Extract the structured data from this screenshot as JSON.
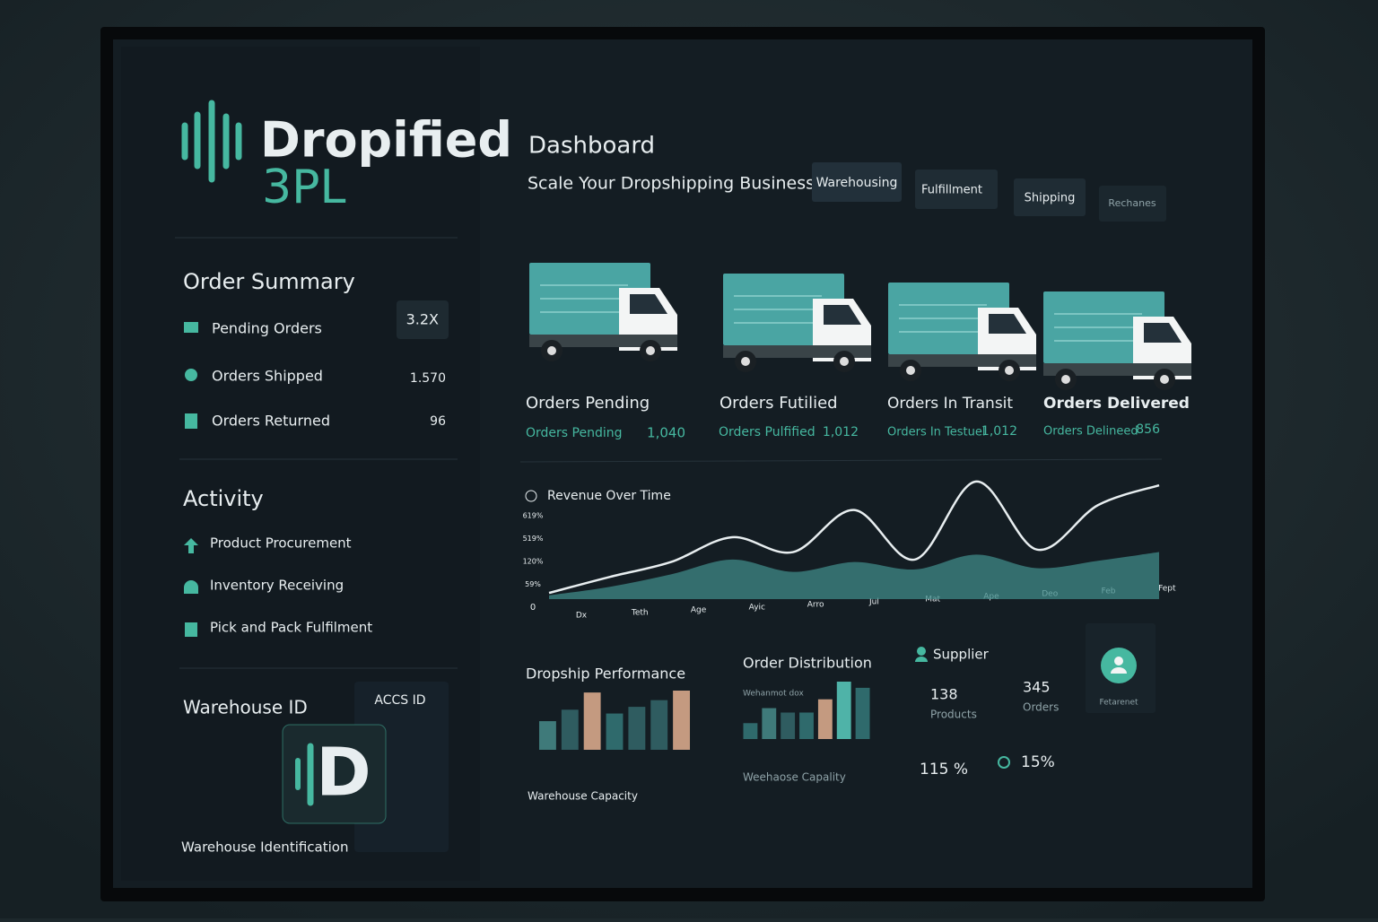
{
  "brand": {
    "name": "Dropified",
    "sub": "3PL"
  },
  "sidebar": {
    "order_summary": {
      "title": "Order Summary",
      "items": [
        {
          "label": "Pending Orders",
          "value": "3.2X"
        },
        {
          "label": "Orders Shipped",
          "value": "1.570"
        },
        {
          "label": "Orders Returned",
          "value": "96"
        }
      ]
    },
    "activity": {
      "title": "Activity",
      "items": [
        "Product Procurement",
        "Inventory Receiving",
        "Pick and Pack Fulfilment"
      ]
    },
    "warehouse": {
      "title": "Warehouse ID",
      "code": "ACCS ID",
      "badge": "D",
      "caption": "Warehouse Identification"
    }
  },
  "header": {
    "title": "Dashboard",
    "subtitle": "Scale Your Dropshipping Business",
    "tabs": [
      "Warehousing",
      "Fulfillment",
      "Shipping",
      "Rechanes"
    ]
  },
  "cards": [
    {
      "title": "Orders Pending",
      "label": "Orders Pending",
      "value": "1,040"
    },
    {
      "title": "Orders Futilied",
      "label": "Orders Pulfified",
      "value": "1,012"
    },
    {
      "title": "Orders In Transit",
      "label": "Orders In Testuel",
      "value": "1,012"
    },
    {
      "title": "Orders Delivered",
      "label": "Orders Delineed",
      "value": "856"
    }
  ],
  "chart_data": [
    {
      "type": "line",
      "title": "Revenue Over Time",
      "categories": [
        "Dx",
        "Teth",
        "Age",
        "Ayic",
        "Arro",
        "Jul",
        "Mat",
        "Ape",
        "Deo",
        "Feb",
        "Fept"
      ],
      "y_axis_labels": [
        "0",
        "59%",
        "120%",
        "519%",
        "619%"
      ],
      "ylim": [
        0,
        100
      ],
      "series": [
        {
          "color": "#e8eef0",
          "values": [
            5,
            18,
            30,
            50,
            38,
            72,
            32,
            95,
            40,
            76,
            92
          ]
        },
        {
          "color": "#3f8a88",
          "values": [
            3,
            10,
            20,
            32,
            22,
            30,
            24,
            36,
            25,
            31,
            38
          ]
        }
      ]
    },
    {
      "type": "bar",
      "title": "Dropship Performance",
      "caption": "Warehouse Capacity",
      "values": [
        30,
        42,
        60,
        38,
        45,
        52,
        62
      ],
      "colors": [
        "#3f7a7a",
        "#2f5c60",
        "#c49a80",
        "#2f6a6c",
        "#2f5c60",
        "#2f5c60",
        "#c49a80"
      ]
    },
    {
      "type": "bar",
      "title": "Order Distribution",
      "subtitle": "Wehanmot dox",
      "caption": "Weehaose Capality",
      "values": [
        18,
        35,
        30,
        30,
        45,
        65,
        58
      ],
      "colors": [
        "#2f6a6c",
        "#3f7a7a",
        "#2f5c60",
        "#2f6a6c",
        "#c49a80",
        "#4fb3a8",
        "#2f6a6c"
      ]
    }
  ],
  "supplier": {
    "title": "Supplier",
    "stats": [
      {
        "value": "138",
        "label": "Products"
      },
      {
        "value": "345",
        "label": "Orders"
      }
    ],
    "avatar_label": "Fetarenet",
    "pct1": "115 %",
    "pct2": "15%"
  }
}
